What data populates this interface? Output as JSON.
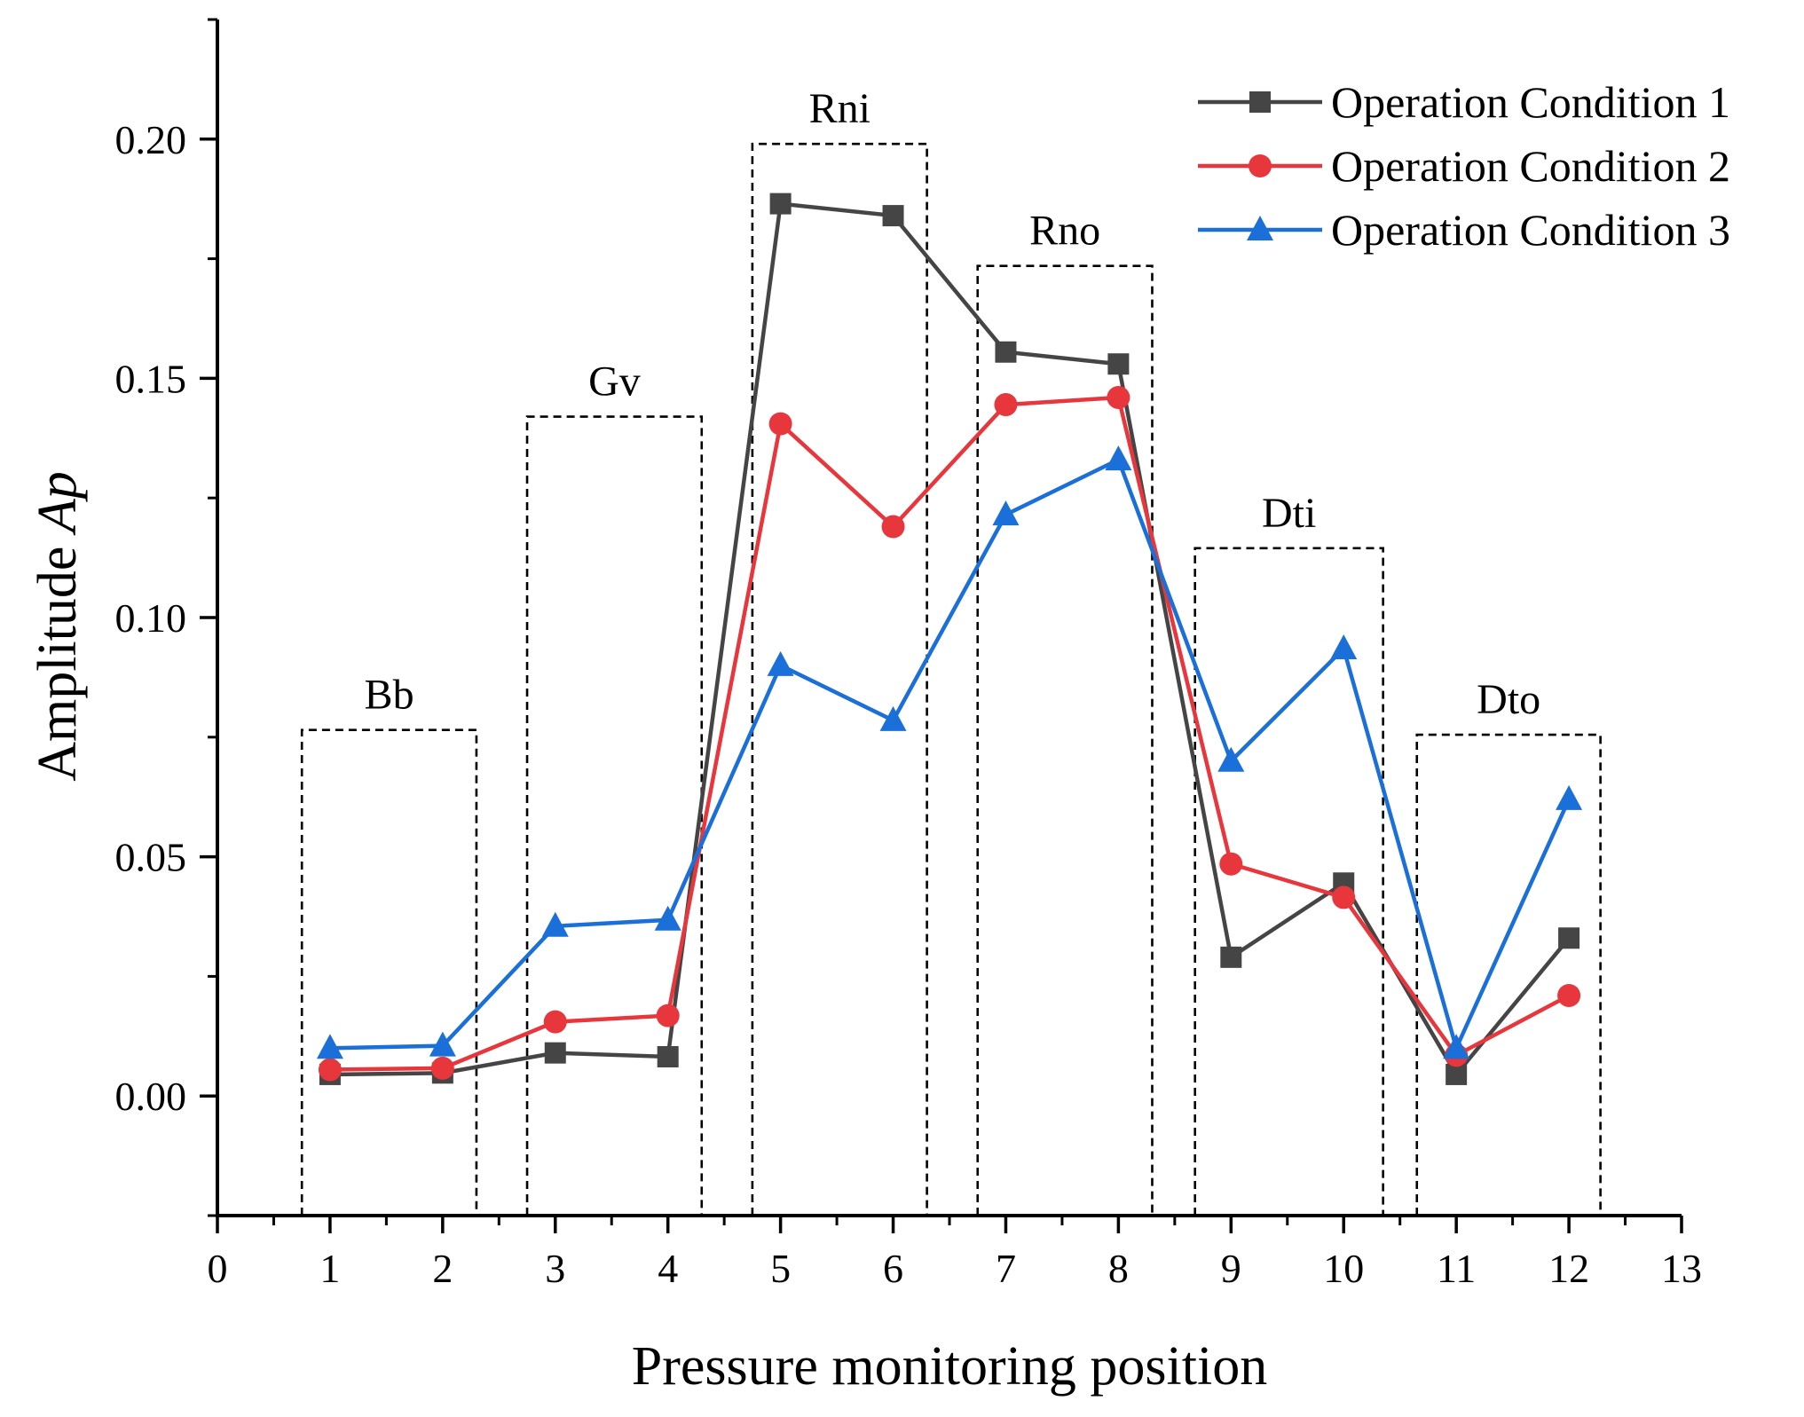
{
  "chart_data": {
    "type": "line",
    "xlabel": "Pressure monitoring position",
    "ylabel_prefix": "Amplitude ",
    "ylabel_italic": "Ap",
    "xlim": [
      0,
      13
    ],
    "ylim": [
      -0.025,
      0.225
    ],
    "x_ticks": [
      0,
      1,
      2,
      3,
      4,
      5,
      6,
      7,
      8,
      9,
      10,
      11,
      12,
      13
    ],
    "x_tick_labels": [
      "0",
      "1",
      "2",
      "3",
      "4",
      "5",
      "6",
      "7",
      "8",
      "9",
      "10",
      "11",
      "12",
      "13"
    ],
    "y_ticks": [
      0.0,
      0.05,
      0.1,
      0.15,
      0.2
    ],
    "y_tick_labels": [
      "0.00",
      "0.05",
      "0.10",
      "0.15",
      "0.20"
    ],
    "grid": false,
    "legend_position": "top-right",
    "x": [
      1,
      2,
      3,
      4,
      5,
      6,
      7,
      8,
      9,
      10,
      11,
      12
    ],
    "series": [
      {
        "name": "Operation Condition 1",
        "color": "#454545",
        "marker": "square",
        "values": [
          0.0045,
          0.0048,
          0.009,
          0.0082,
          0.1865,
          0.184,
          0.1555,
          0.153,
          0.029,
          0.0445,
          0.0045,
          0.033
        ]
      },
      {
        "name": "Operation Condition 2",
        "color": "#e8363d",
        "marker": "circle",
        "values": [
          0.0055,
          0.0058,
          0.0155,
          0.0168,
          0.1405,
          0.119,
          0.1445,
          0.146,
          0.0485,
          0.0415,
          0.0085,
          0.021
        ]
      },
      {
        "name": "Operation Condition 3",
        "color": "#1b6fd9",
        "marker": "triangle",
        "values": [
          0.01,
          0.0105,
          0.0355,
          0.0368,
          0.09,
          0.0785,
          0.1215,
          0.133,
          0.07,
          0.0935,
          0.01,
          0.062
        ]
      }
    ],
    "annotations": [
      {
        "label": "Bb",
        "x_range": [
          0.75,
          2.3
        ],
        "y_top": 0.0765
      },
      {
        "label": "Gv",
        "x_range": [
          2.75,
          4.3
        ],
        "y_top": 0.142
      },
      {
        "label": "Rni",
        "x_range": [
          4.75,
          6.3
        ],
        "y_top": 0.199
      },
      {
        "label": "Rno",
        "x_range": [
          6.75,
          8.3
        ],
        "y_top": 0.1735
      },
      {
        "label": "Dti",
        "x_range": [
          8.68,
          10.35
        ],
        "y_top": 0.1145
      },
      {
        "label": "Dto",
        "x_range": [
          10.65,
          12.28
        ],
        "y_top": 0.0755
      }
    ]
  }
}
